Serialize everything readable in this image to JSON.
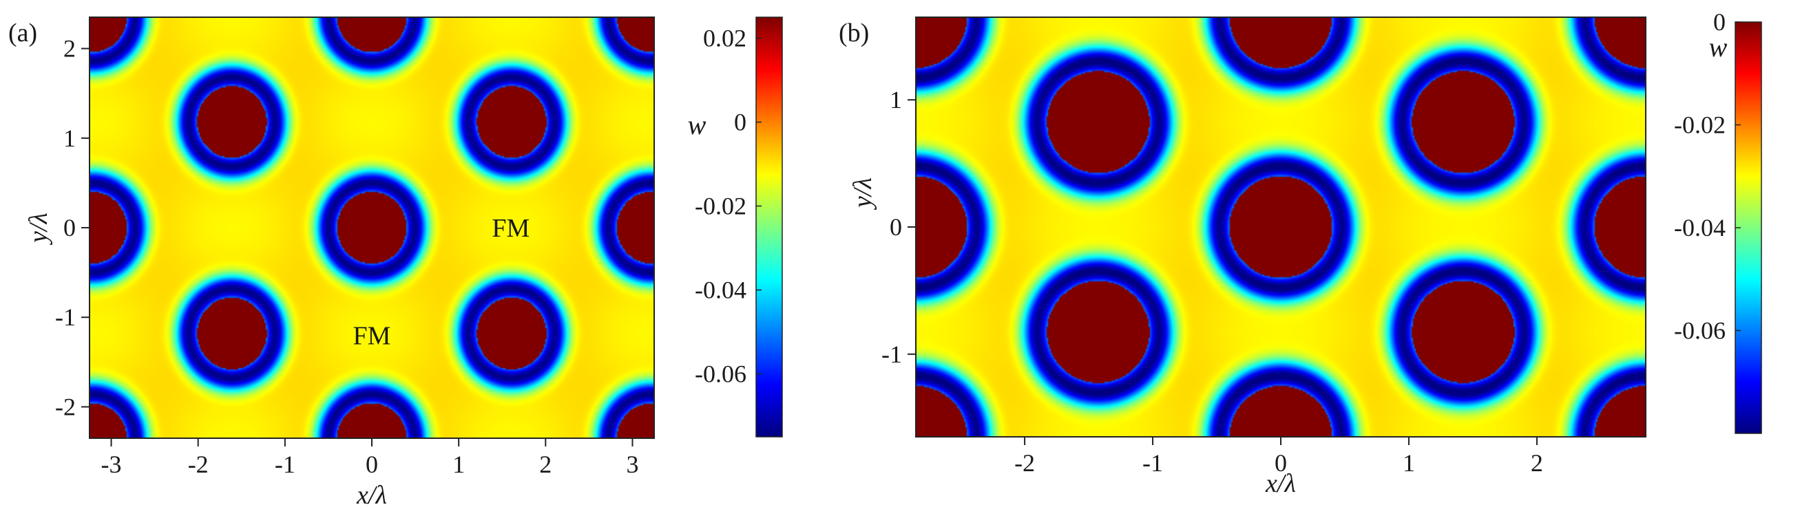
{
  "chart_data": [
    {
      "type": "heatmap",
      "panel_label": "(a)",
      "xlabel": "x/λ",
      "ylabel": "y/λ",
      "xlim": [
        -3.25,
        3.25
      ],
      "ylim": [
        -2.35,
        2.35
      ],
      "xticks": [
        -3,
        -2,
        -1,
        0,
        1,
        2,
        3
      ],
      "xticklabels": [
        "-3",
        "-2",
        "-1",
        "0",
        "1",
        "2",
        "3"
      ],
      "yticks": [
        -2,
        -1,
        0,
        1,
        2
      ],
      "yticklabels": [
        "-2",
        "-1",
        "0",
        "1",
        "2"
      ],
      "lattice": "centered-rectangular",
      "lattice_period": [
        3.22,
        2.36
      ],
      "skyrmion_core_radius": 0.4,
      "ring_width": 0.28,
      "skyrmion_centers": [
        [
          -1.61,
          1.18
        ],
        [
          1.61,
          1.18
        ],
        [
          0,
          0
        ],
        [
          -1.61,
          -1.18
        ],
        [
          1.61,
          -1.18
        ]
      ],
      "annotations": [
        {
          "text": "FM",
          "x": 1.6,
          "y": 0
        },
        {
          "text": "FM",
          "x": 0,
          "y": -1.2
        }
      ],
      "colorbar": {
        "title": "w",
        "min": -0.075,
        "max": 0.025,
        "ticks": [
          0.02,
          0,
          -0.02,
          -0.04,
          -0.06
        ],
        "ticklabels": [
          "0.02",
          "0",
          "-0.02",
          "-0.04",
          "-0.06"
        ],
        "colormap": "jet"
      }
    },
    {
      "type": "heatmap",
      "panel_label": "(b)",
      "xlabel": "x/λ",
      "ylabel": "y/λ",
      "xlim": [
        -2.85,
        2.85
      ],
      "ylim": [
        -1.65,
        1.65
      ],
      "xticks": [
        -2,
        -1,
        0,
        1,
        2
      ],
      "xticklabels": [
        "-2",
        "-1",
        "0",
        "1",
        "2"
      ],
      "yticks": [
        -1,
        0,
        1
      ],
      "yticklabels": [
        "-1",
        "0",
        "1"
      ],
      "lattice": "hexagonal",
      "lattice_period": [
        2.85,
        1.65
      ],
      "skyrmion_core_radius": 0.4,
      "ring_width": 0.22,
      "skyrmion_centers": [
        [
          -1.42,
          0.83
        ],
        [
          1.42,
          0.83
        ],
        [
          0,
          0
        ],
        [
          -1.42,
          -0.83
        ],
        [
          1.42,
          -0.83
        ]
      ],
      "colorbar": {
        "title": "w",
        "min": -0.08,
        "max": 0,
        "ticks": [
          0,
          -0.02,
          -0.04,
          -0.06
        ],
        "ticklabels": [
          "0",
          "-0.02",
          "-0.04",
          "-0.06"
        ],
        "colormap": "jet"
      }
    }
  ]
}
